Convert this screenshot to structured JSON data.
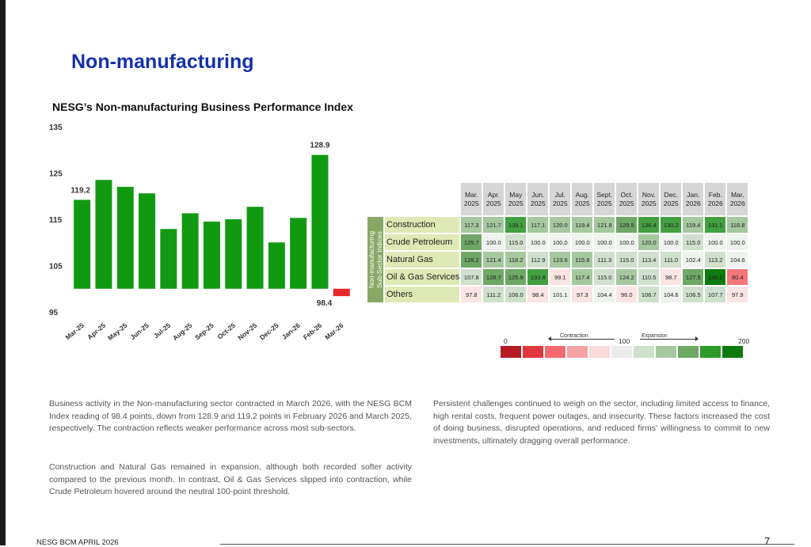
{
  "page": {
    "section_title": "Non-manufacturing",
    "footer": "NESG BCM APRIL 2026",
    "page_number": "7"
  },
  "chart_data": [
    {
      "type": "bar",
      "title": "NESG’s Non-manufacturing Business Performance Index",
      "categories": [
        "Mar-25",
        "Apr-25",
        "May-25",
        "Jun-25",
        "Jul-25",
        "Aug-25",
        "Sep-25",
        "Oct-25",
        "Nov-25",
        "Dec-25",
        "Jan-26",
        "Feb-26",
        "Mar-26"
      ],
      "values": [
        119.2,
        123.5,
        122.0,
        120.6,
        112.9,
        116.3,
        114.5,
        115.0,
        117.7,
        110.0,
        115.3,
        128.9,
        98.4
      ],
      "data_labels": {
        "0": "119.2",
        "11": "128.9",
        "12": "98.4"
      },
      "ylim": [
        95,
        135
      ],
      "yticks": [
        "135",
        "125",
        "115",
        "105",
        "95"
      ],
      "baseline": 100,
      "colors": {
        "expansion": "#119a11",
        "contraction": "#e8272b"
      }
    },
    {
      "type": "heatmap",
      "columns": [
        [
          "Mar.",
          "2025"
        ],
        [
          "Apr.",
          "2025"
        ],
        [
          "May",
          "2025"
        ],
        [
          "Jun.",
          "2025"
        ],
        [
          "Jul.",
          "2025"
        ],
        [
          "Aug.",
          "2025"
        ],
        [
          "Sept.",
          "2025"
        ],
        [
          "Oct.",
          "2025"
        ],
        [
          "Nov.",
          "2025"
        ],
        [
          "Dec.",
          "2025"
        ],
        [
          "Jan.",
          "2026"
        ],
        [
          "Feb.",
          "2026"
        ],
        [
          "Mar.",
          "2026"
        ]
      ],
      "row_axis_label": [
        "Non-manufacturing",
        "Sub-Sector Indices"
      ],
      "rows": [
        {
          "name": "Construction",
          "values": [
            "117.3",
            "121.7",
            "139.1",
            "117.1",
            "120.0",
            "119.4",
            "121.8",
            "129.5",
            "136.4",
            "130.2",
            "119.4",
            "131.1",
            "118.8"
          ]
        },
        {
          "name": "Crude Petroleum",
          "values": [
            "125.7",
            "100.0",
            "115.0",
            "100.0",
            "100.0",
            "100.0",
            "100.0",
            "100.0",
            "120.0",
            "100.0",
            "115.0",
            "100.0",
            "100.0"
          ]
        },
        {
          "name": "Natural Gas",
          "values": [
            "128.2",
            "121.4",
            "118.2",
            "112.9",
            "123.6",
            "115.8",
            "111.3",
            "115.0",
            "113.4",
            "111.0",
            "102.4",
            "113.2",
            "104.6"
          ]
        },
        {
          "name": "Oil & Gas Services",
          "values": [
            "107.8",
            "128.7",
            "125.9",
            "133.8",
            "99.1",
            "117.4",
            "115.0",
            "124.2",
            "110.5",
            "98.7",
            "127.5",
            "145.2",
            "80.4"
          ]
        },
        {
          "name": "Others",
          "values": [
            "97.8",
            "111.2",
            "106.0",
            "98.4",
            "101.1",
            "97.3",
            "104.4",
            "96.0",
            "106.7",
            "104.6",
            "106.5",
            "107.7",
            "97.9"
          ]
        }
      ],
      "legend": {
        "min_label": "0",
        "mid_label": "100",
        "max_label": "200",
        "contraction_label": "Contraction",
        "expansion_label": "Expansion",
        "swatch_colors": [
          "#b71c24",
          "#e0363d",
          "#f46a70",
          "#f6a3a5",
          "#fadada",
          "#ebebeb",
          "#cfe0cd",
          "#a5c89f",
          "#6fa766",
          "#2e9a2a",
          "#0f7a10"
        ]
      }
    }
  ],
  "text": {
    "para1": "Business activity in the Non-manufacturing sector contracted in March 2026, with the NESG BCM Index reading of 98.4 points, down from 128.9 and 119.2 points in February 2026 and March 2025, respectively. The contraction reflects weaker performance across most sub-sectors.",
    "para2": "Construction and Natural Gas remained in expansion, although both recorded softer activity compared to the previous month. In contrast, Oil & Gas Services slipped into contraction, while Crude Petroleum hovered around the neutral 100-point threshold.",
    "para3": "Persistent challenges continued to weigh on the sector, including limited access to finance, high rental costs, frequent power outages, and insecurity. These factors increased the cost of doing business, disrupted operations, and reduced firms’ willingness to commit to new investments, ultimately dragging overall performance."
  }
}
